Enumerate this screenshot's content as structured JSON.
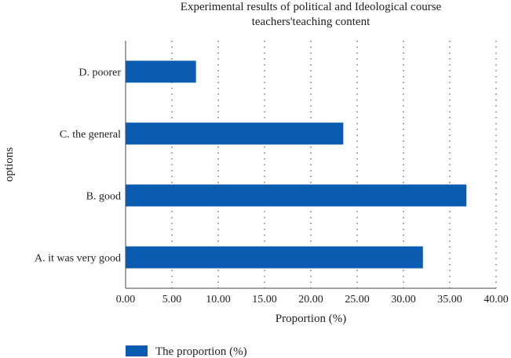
{
  "chart_data": {
    "type": "bar",
    "orientation": "horizontal",
    "title": "Experimental results of political and Ideological course teachers'teaching content",
    "title_lines": [
      "Experimental results of political and Ideological course",
      "teachers'teaching content"
    ],
    "xlabel": "Proportion (%)",
    "ylabel": "options",
    "categories": [
      "A. it was very good",
      "B. good",
      "C. the general",
      "D. poorer"
    ],
    "series": [
      {
        "name": "The proportion (%)",
        "values": [
          32.1,
          36.8,
          23.5,
          7.6
        ],
        "color": "#0a5cb3"
      }
    ],
    "xlim": [
      0,
      40
    ],
    "xticks": [
      0,
      5,
      10,
      15,
      20,
      25,
      30,
      35,
      40
    ],
    "xtick_labels": [
      "0.00",
      "5.00",
      "10.00",
      "15.00",
      "20.00",
      "25.00",
      "30.00",
      "35.00",
      "40.00"
    ],
    "grid": {
      "x": true,
      "y": false,
      "style": "dotted"
    },
    "legend_position": "bottom-left"
  }
}
